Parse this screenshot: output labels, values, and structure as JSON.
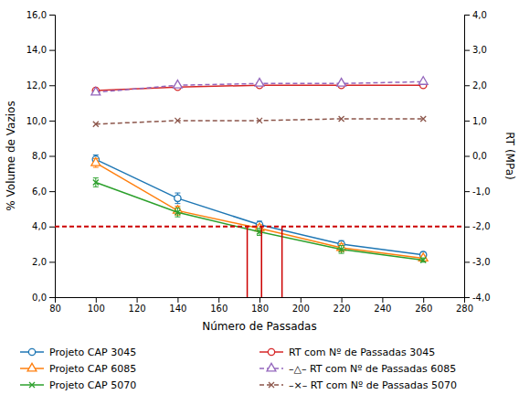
{
  "chart_data": {
    "type": "line",
    "x_label": "Número de Passadas",
    "y_label": "% Volume de Vazios",
    "y2_label": "RT (MPa)",
    "x": [
      100,
      140,
      180,
      220,
      260
    ],
    "xlim": [
      80,
      280
    ],
    "xticks": [
      80,
      100,
      120,
      140,
      160,
      180,
      200,
      220,
      240,
      260,
      280
    ],
    "ylim": [
      0.0,
      16.0
    ],
    "yticks": [
      {
        "value": 0.0,
        "label": "0,0"
      },
      {
        "value": 2.0,
        "label": "2,0"
      },
      {
        "value": 4.0,
        "label": "4,0"
      },
      {
        "value": 6.0,
        "label": "6,0"
      },
      {
        "value": 8.0,
        "label": "8,0"
      },
      {
        "value": 10.0,
        "label": "10,0"
      },
      {
        "value": 12.0,
        "label": "12,0"
      },
      {
        "value": 14.0,
        "label": "14,0"
      },
      {
        "value": 16.0,
        "label": "16,0"
      }
    ],
    "y2lim": [
      -4.0,
      4.0
    ],
    "y2ticks": [
      {
        "value": -4.0,
        "label": "-4,0"
      },
      {
        "value": -3.0,
        "label": "-3,0"
      },
      {
        "value": -2.0,
        "label": "-2,0"
      },
      {
        "value": -1.0,
        "label": "-1,0"
      },
      {
        "value": 0.0,
        "label": "0,0"
      },
      {
        "value": 1.0,
        "label": "1,0"
      },
      {
        "value": 2.0,
        "label": "2,0"
      },
      {
        "value": 3.0,
        "label": "3,0"
      },
      {
        "value": 4.0,
        "label": "4,0"
      }
    ],
    "grid": false,
    "legend": "bottom",
    "series": [
      {
        "name": "Projeto CAP 3045",
        "values": [
          7.8,
          5.6,
          4.1,
          3.0,
          2.4
        ],
        "errors": [
          0.25,
          0.3,
          0.2,
          0.2,
          0.15
        ],
        "marker": "circle",
        "line_style": "solid"
      },
      {
        "name": "Projeto CAP 6085",
        "values": [
          7.6,
          4.9,
          3.9,
          2.8,
          2.2
        ],
        "errors": [
          0.25,
          0.25,
          0.2,
          0.22,
          0.12
        ],
        "marker": "triangle",
        "line_style": "solid"
      },
      {
        "name": "Projeto CAP 5070",
        "values": [
          6.5,
          4.8,
          3.7,
          2.7,
          2.1
        ],
        "errors": [
          0.25,
          0.25,
          0.2,
          0.22,
          0.12
        ],
        "marker": "x",
        "line_style": "solid"
      },
      {
        "name": "RT com Nº de Passadas 3045",
        "axis": "y2",
        "values": [
          1.85,
          1.95,
          2.0,
          2.0,
          2.0
        ],
        "marker": "circle",
        "line_style": "solid"
      },
      {
        "name": "–△– RT com Nº de Passadas 6085",
        "axis": "y2",
        "values": [
          1.8,
          2.0,
          2.05,
          2.05,
          2.1
        ],
        "marker": "triangle",
        "line_style": "dashed"
      },
      {
        "name": "–×– RT com Nº de Passadas 5070",
        "axis": "y2",
        "values": [
          0.9,
          1.0,
          1.0,
          1.05,
          1.05
        ],
        "marker": "x",
        "line_style": "dashed"
      }
    ],
    "hlines": [
      {
        "value": 4.0,
        "color": "#cc0000",
        "line_style": "dashed"
      }
    ],
    "vlines": {
      "x": [
        174,
        181,
        191
      ],
      "y": [
        0.0,
        4.0
      ],
      "color": "#cc0000"
    }
  }
}
